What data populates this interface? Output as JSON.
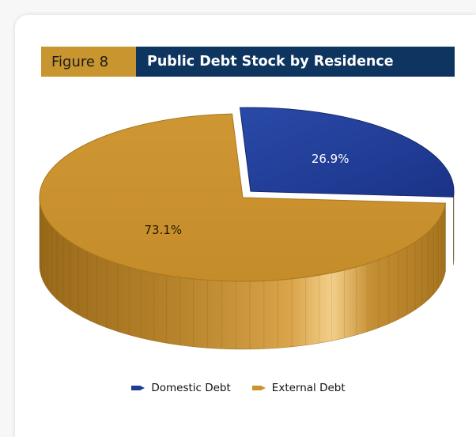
{
  "figure": {
    "number": "Figure 8",
    "title": "Public Debt Stock by Residence"
  },
  "colors": {
    "domestic": "#1f3a93",
    "external": "#c9952e",
    "header_left": "#c9952e",
    "header_right": "#0e3460"
  },
  "chart_data": {
    "type": "pie",
    "title": "Public Debt Stock by Residence",
    "labels": [
      "Domestic Debt",
      "External Debt"
    ],
    "values": [
      26.9,
      73.1
    ],
    "data_labels": [
      "26.9%",
      "73.1%"
    ],
    "legend_position": "bottom",
    "style": "3d-exploded"
  }
}
